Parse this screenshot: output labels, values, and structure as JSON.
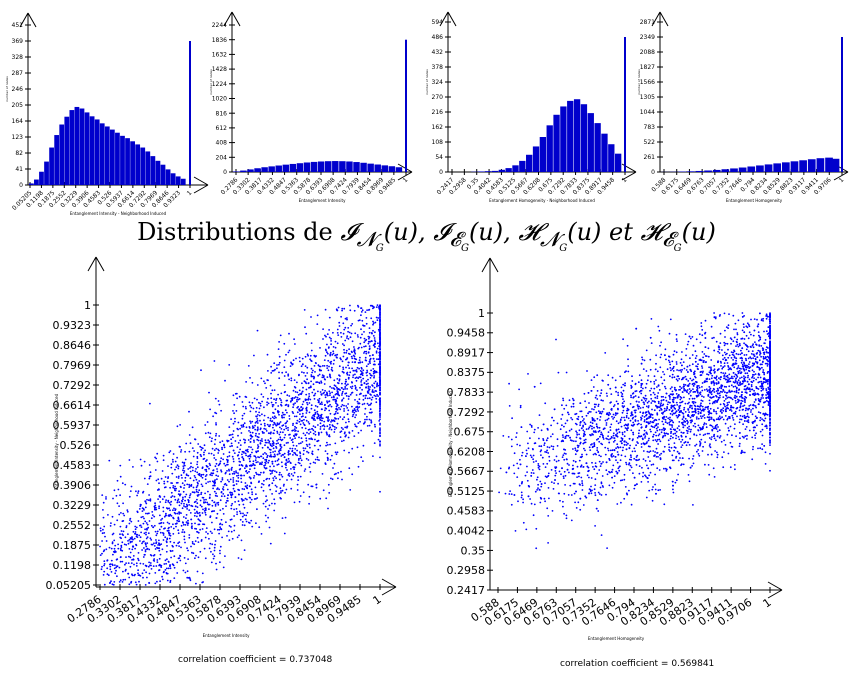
{
  "caption": {
    "prefix": "Distributions de",
    "t1": "𝓘",
    "t1_sub": "𝓝",
    "t1_subsub": "G",
    "t1_arg": "(u),",
    "t2": "𝓘",
    "t2_sub": "𝓔",
    "t2_subsub": "G",
    "t2_arg": "(u),",
    "t3": "𝓗",
    "t3_sub": "𝓝",
    "t3_subsub": "G",
    "t3_arg": "(u) et",
    "t4": "𝓗",
    "t4_sub": "𝓔",
    "t4_subsub": "G",
    "t4_arg": "(u)"
  },
  "colors": {
    "bars": "#0000cc",
    "points": "#0000ff",
    "axes": "#000000"
  },
  "chart_data": [
    {
      "type": "bar",
      "ylabel": "number of nodes",
      "xlabel": "Entanglement Intensity - Neighborhood Induced",
      "yticks": [
        "451",
        "369",
        "328",
        "287",
        "246",
        "205",
        "164",
        "123",
        "82",
        "41",
        "0"
      ],
      "xticks": [
        "0.05205",
        "0.1198",
        "0.1875",
        "0.2552",
        "0.3229",
        "0.3906",
        "0.4583",
        "0.526",
        "0.5937",
        "0.6614",
        "0.7292",
        "0.7969",
        "0.8646",
        "0.9323",
        "1"
      ],
      "ylim": [
        0,
        451
      ],
      "xlim": [
        0.05205,
        1
      ],
      "x": [
        0.06,
        0.09,
        0.12,
        0.15,
        0.18,
        0.21,
        0.24,
        0.27,
        0.3,
        0.33,
        0.36,
        0.39,
        0.42,
        0.45,
        0.48,
        0.51,
        0.54,
        0.57,
        0.6,
        0.63,
        0.66,
        0.69,
        0.72,
        0.75,
        0.78,
        0.81,
        0.84,
        0.87,
        0.9,
        0.93,
        0.96,
        1.0
      ],
      "values": [
        4,
        14,
        34,
        60,
        96,
        128,
        155,
        175,
        192,
        200,
        196,
        186,
        176,
        168,
        158,
        150,
        142,
        134,
        126,
        120,
        112,
        104,
        96,
        86,
        74,
        62,
        52,
        40,
        30,
        22,
        16,
        369
      ]
    },
    {
      "type": "bar",
      "ylabel": "number of nodes",
      "xlabel": "Entanglement Intensity",
      "yticks": [
        "2244",
        "1836",
        "1632",
        "1428",
        "1224",
        "1020",
        "816",
        "612",
        "408",
        "204",
        "0"
      ],
      "xticks": [
        "0.2786",
        "0.3302",
        "0.3817",
        "0.4332",
        "0.4847",
        "0.5363",
        "0.5878",
        "0.6393",
        "0.6908",
        "0.7424",
        "0.7939",
        "0.8454",
        "0.8969",
        "0.9485",
        "1"
      ],
      "ylim": [
        0,
        2244
      ],
      "xlim": [
        0.2786,
        1
      ],
      "x": [
        0.28,
        0.31,
        0.34,
        0.37,
        0.4,
        0.43,
        0.46,
        0.49,
        0.52,
        0.55,
        0.58,
        0.61,
        0.64,
        0.67,
        0.7,
        0.73,
        0.76,
        0.79,
        0.82,
        0.85,
        0.88,
        0.91,
        0.94,
        0.97,
        1.0
      ],
      "values": [
        8,
        20,
        36,
        52,
        66,
        78,
        90,
        102,
        112,
        122,
        132,
        140,
        146,
        150,
        152,
        150,
        146,
        138,
        128,
        116,
        104,
        92,
        80,
        66,
        1836
      ]
    },
    {
      "type": "bar",
      "ylabel": "number of nodes",
      "xlabel": "Entanglement Homogeneity - Neighborhood Induced",
      "yticks": [
        "594",
        "486",
        "432",
        "378",
        "324",
        "270",
        "216",
        "162",
        "108",
        "54",
        "0"
      ],
      "xticks": [
        "0.2417",
        "0.2958",
        "0.35",
        "0.4042",
        "0.4583",
        "0.5125",
        "0.5667",
        "0.6208",
        "0.675",
        "0.7292",
        "0.7833",
        "0.8375",
        "0.8917",
        "0.9458",
        "1"
      ],
      "ylim": [
        0,
        594
      ],
      "xlim": [
        0.2417,
        1
      ],
      "x": [
        0.25,
        0.28,
        0.31,
        0.34,
        0.37,
        0.4,
        0.43,
        0.46,
        0.49,
        0.52,
        0.55,
        0.58,
        0.61,
        0.64,
        0.67,
        0.7,
        0.73,
        0.76,
        0.79,
        0.82,
        0.85,
        0.88,
        0.91,
        0.94,
        0.97,
        1.0
      ],
      "values": [
        0,
        0,
        0,
        1,
        2,
        3,
        4,
        8,
        14,
        24,
        40,
        62,
        92,
        126,
        168,
        206,
        236,
        256,
        262,
        244,
        212,
        176,
        138,
        100,
        66,
        486
      ]
    },
    {
      "type": "bar",
      "ylabel": "number of nodes",
      "xlabel": "Entanglement Homogeneity",
      "yticks": [
        "2871",
        "2349",
        "2088",
        "1827",
        "1566",
        "1305",
        "1044",
        "783",
        "522",
        "261",
        "0"
      ],
      "xticks": [
        "0.588",
        "0.6175",
        "0.6469",
        "0.6763",
        "0.7057",
        "0.7352",
        "0.7646",
        "0.794",
        "0.8234",
        "0.8529",
        "0.8823",
        "0.9117",
        "0.9411",
        "0.9706",
        "1"
      ],
      "ylim": [
        0,
        2871
      ],
      "xlim": [
        0.588,
        1
      ],
      "x": [
        0.59,
        0.61,
        0.63,
        0.65,
        0.67,
        0.69,
        0.71,
        0.73,
        0.75,
        0.77,
        0.79,
        0.81,
        0.83,
        0.85,
        0.87,
        0.89,
        0.91,
        0.93,
        0.95,
        0.97,
        0.985,
        1.0
      ],
      "values": [
        2,
        4,
        8,
        12,
        18,
        26,
        36,
        48,
        62,
        78,
        96,
        114,
        132,
        150,
        168,
        186,
        204,
        222,
        240,
        250,
        230,
        2349
      ]
    },
    {
      "type": "scatter",
      "xlabel": "Entanglement Intensity",
      "ylabel": "Entanglement Intensity - Neighborhood Induced",
      "yticks": [
        "1",
        "0.9323",
        "0.8646",
        "0.7969",
        "0.7292",
        "0.6614",
        "0.5937",
        "0.526",
        "0.4583",
        "0.3906",
        "0.3229",
        "0.2552",
        "0.1875",
        "0.1198",
        "0.05205"
      ],
      "xticks": [
        "0.2786",
        "0.3302",
        "0.3817",
        "0.4332",
        "0.4847",
        "0.5363",
        "0.5878",
        "0.6393",
        "0.6908",
        "0.7424",
        "0.7939",
        "0.8454",
        "0.8969",
        "0.9485",
        "1"
      ],
      "xlim": [
        0.2786,
        1
      ],
      "ylim": [
        0.05205,
        1
      ],
      "trend": {
        "slope": 1.03,
        "intercept": -0.21,
        "spread": 0.13
      },
      "correlation_coefficient": "correlation coefficient = 0.737048"
    },
    {
      "type": "scatter",
      "xlabel": "Entanglement Homogeneity",
      "ylabel": "Entanglement Homogeneity - Neighborhood Induced",
      "yticks": [
        "1",
        "0.9458",
        "0.8917",
        "0.8375",
        "0.7833",
        "0.7292",
        "0.675",
        "0.6208",
        "0.5667",
        "0.5125",
        "0.4583",
        "0.4042",
        "0.35",
        "0.2958",
        "0.2417"
      ],
      "xticks": [
        "0.588",
        "0.6175",
        "0.6469",
        "0.6763",
        "0.7057",
        "0.7352",
        "0.7646",
        "0.794",
        "0.8234",
        "0.8529",
        "0.8823",
        "0.9117",
        "0.9411",
        "0.9706",
        "1"
      ],
      "xlim": [
        0.588,
        1
      ],
      "ylim": [
        0.2417,
        1
      ],
      "trend": {
        "slope": 0.72,
        "intercept": 0.12,
        "spread": 0.09
      },
      "correlation_coefficient": "correlation coefficient = 0.569841"
    }
  ]
}
